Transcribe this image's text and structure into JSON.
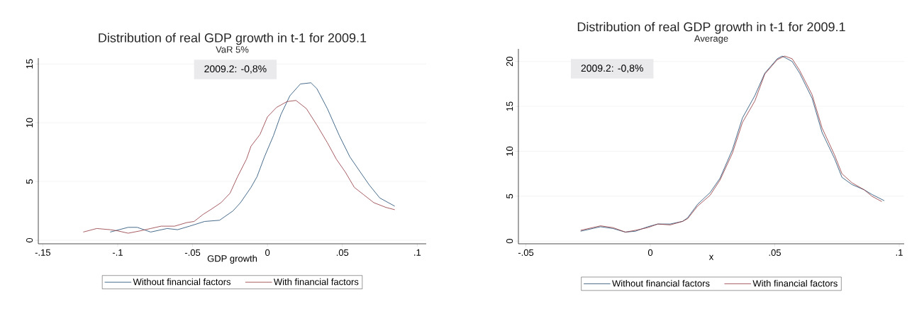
{
  "chart_data": [
    {
      "type": "line",
      "title": "Distribution of real GDP growth in t-1 for 2009.1",
      "subtitle": "VaR 5%",
      "xlabel": "GDP growth",
      "annotations": [
        "2009.2: -0,8%"
      ],
      "xlim": [
        -0.153,
        0.106
      ],
      "ylim": [
        -0.3,
        15.5
      ],
      "xticks": [
        {
          "value": -0.15,
          "label": "-.15"
        },
        {
          "value": -0.1,
          "label": "-.1"
        },
        {
          "value": -0.05,
          "label": "-.05"
        },
        0,
        {
          "value": 0.05,
          "label": ".05"
        },
        {
          "value": 0.1,
          "label": ".1"
        }
      ],
      "yticks": [
        0,
        5,
        10,
        15
      ],
      "grid": "y",
      "legend": "bottom",
      "series": [
        {
          "name": "Without financial factors",
          "color": "#1a476f",
          "x": [
            -0.105,
            -0.093,
            -0.087,
            -0.078,
            -0.067,
            -0.06,
            -0.052,
            -0.042,
            -0.032,
            -0.023,
            -0.018,
            -0.011,
            -0.007,
            -0.002,
            0.004,
            0.009,
            0.015,
            0.022,
            0.029,
            0.033,
            0.04,
            0.048,
            0.055,
            0.062,
            0.068,
            0.075,
            0.085
          ],
          "values": [
            0.7,
            1.1,
            1.1,
            0.7,
            1.0,
            0.9,
            1.2,
            1.6,
            1.7,
            2.5,
            3.2,
            4.5,
            5.4,
            7.1,
            8.9,
            10.7,
            12.3,
            13.3,
            13.4,
            12.9,
            11.2,
            8.9,
            7.1,
            5.8,
            4.7,
            3.6,
            2.9
          ]
        },
        {
          "name": "With financial factors",
          "color": "#90353b",
          "x": [
            -0.123,
            -0.114,
            -0.105,
            -0.1,
            -0.093,
            -0.085,
            -0.078,
            -0.071,
            -0.062,
            -0.054,
            -0.049,
            -0.043,
            -0.038,
            -0.031,
            -0.025,
            -0.02,
            -0.014,
            -0.011,
            -0.005,
            0.0,
            0.006,
            0.013,
            0.019,
            0.026,
            0.033,
            0.04,
            0.046,
            0.052,
            0.058,
            0.064,
            0.071,
            0.079,
            0.085
          ],
          "values": [
            0.7,
            1.0,
            0.9,
            0.8,
            0.6,
            0.8,
            1.0,
            1.2,
            1.2,
            1.5,
            1.6,
            2.2,
            2.6,
            3.2,
            4.0,
            5.4,
            6.9,
            8.0,
            9.0,
            10.5,
            11.3,
            11.8,
            11.9,
            11.2,
            9.8,
            8.3,
            6.9,
            5.8,
            4.5,
            3.9,
            3.2,
            2.8,
            2.6
          ]
        }
      ]
    },
    {
      "type": "line",
      "title": "Distribution of real GDP growth in t-1 for 2009.1",
      "subtitle": "Average",
      "xlabel": "x",
      "annotations": [
        "2009.2: -0,8%"
      ],
      "xlim": [
        -0.053,
        0.102
      ],
      "ylim": [
        -0.3,
        21.4
      ],
      "xticks": [
        {
          "value": -0.05,
          "label": "-.05"
        },
        0,
        {
          "value": 0.05,
          "label": ".05"
        },
        {
          "value": 0.1,
          "label": ".1"
        }
      ],
      "yticks": [
        0,
        5,
        10,
        15,
        20
      ],
      "grid": "y",
      "legend": "bottom",
      "series": [
        {
          "name": "Without financial factors",
          "color": "#1a476f",
          "x": [
            -0.028,
            -0.02,
            -0.015,
            -0.01,
            -0.006,
            -0.001,
            0.003,
            0.008,
            0.013,
            0.015,
            0.019,
            0.024,
            0.028,
            0.033,
            0.037,
            0.042,
            0.046,
            0.051,
            0.053,
            0.057,
            0.06,
            0.065,
            0.069,
            0.074,
            0.077,
            0.081,
            0.086,
            0.089,
            0.094
          ],
          "values": [
            1.1,
            1.6,
            1.4,
            1.0,
            1.1,
            1.6,
            1.9,
            1.9,
            2.2,
            2.6,
            4.1,
            5.4,
            7.0,
            10.2,
            13.7,
            16.2,
            18.7,
            20.3,
            20.6,
            20.0,
            18.7,
            15.9,
            12.1,
            9.2,
            7.1,
            6.3,
            5.7,
            5.2,
            4.5
          ]
        },
        {
          "name": "With financial factors",
          "color": "#90353b",
          "x": [
            -0.028,
            -0.02,
            -0.015,
            -0.01,
            -0.006,
            -0.001,
            0.003,
            0.008,
            0.013,
            0.015,
            0.019,
            0.024,
            0.028,
            0.033,
            0.037,
            0.042,
            0.046,
            0.051,
            0.054,
            0.057,
            0.06,
            0.065,
            0.069,
            0.074,
            0.077,
            0.081,
            0.086,
            0.089,
            0.093
          ],
          "values": [
            1.2,
            1.7,
            1.5,
            1.0,
            1.2,
            1.5,
            1.9,
            1.8,
            2.2,
            2.5,
            3.9,
            5.1,
            6.8,
            9.8,
            13.2,
            15.6,
            18.6,
            20.2,
            20.6,
            20.3,
            19.0,
            16.3,
            12.6,
            9.6,
            7.5,
            6.5,
            5.7,
            5.0,
            4.4
          ]
        }
      ]
    }
  ]
}
